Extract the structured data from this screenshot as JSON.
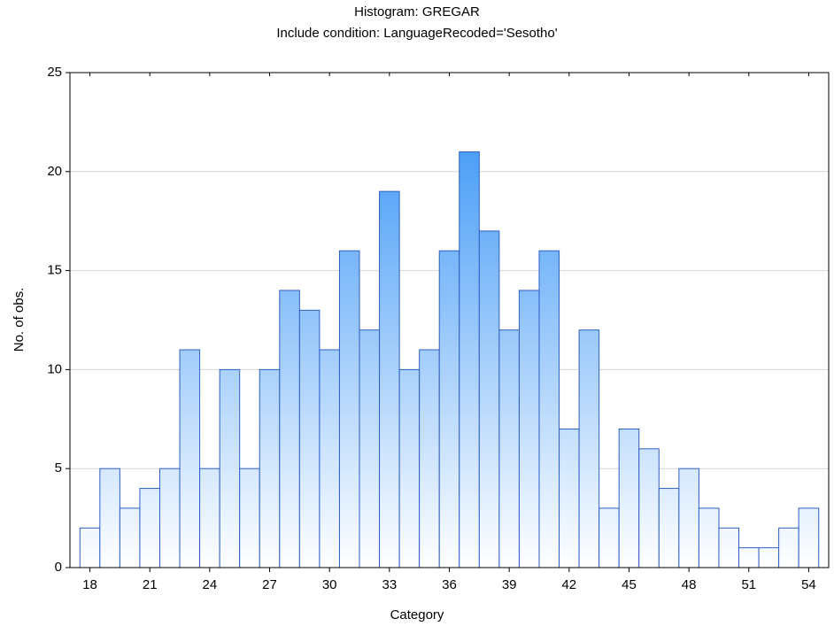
{
  "chart_data": {
    "type": "histogram",
    "title": "Histogram: GREGAR",
    "subtitle": "Include condition: LanguageRecoded='Sesotho'",
    "x_label": "Category",
    "y_label": "No. of obs.",
    "x": [
      18,
      19,
      20,
      21,
      22,
      23,
      24,
      25,
      26,
      27,
      28,
      29,
      30,
      31,
      32,
      33,
      34,
      35,
      36,
      37,
      38,
      39,
      40,
      41,
      42,
      43,
      44,
      45,
      46,
      47,
      48,
      49,
      50,
      51,
      52,
      53,
      54
    ],
    "values": [
      2,
      5,
      3,
      4,
      5,
      11,
      5,
      10,
      5,
      10,
      14,
      13,
      11,
      16,
      12,
      19,
      10,
      11,
      16,
      21,
      17,
      12,
      14,
      16,
      7,
      12,
      3,
      7,
      6,
      4,
      5,
      3,
      2,
      1,
      1,
      2,
      3
    ],
    "color": "#2a8cf5",
    "xlim": [
      17,
      55
    ],
    "xticks": [
      18,
      21,
      24,
      27,
      30,
      33,
      36,
      39,
      42,
      45,
      48,
      51,
      54
    ],
    "ylim": [
      0,
      25
    ],
    "yticks": [
      0,
      5,
      10,
      15,
      20,
      25
    ],
    "grid": true
  }
}
